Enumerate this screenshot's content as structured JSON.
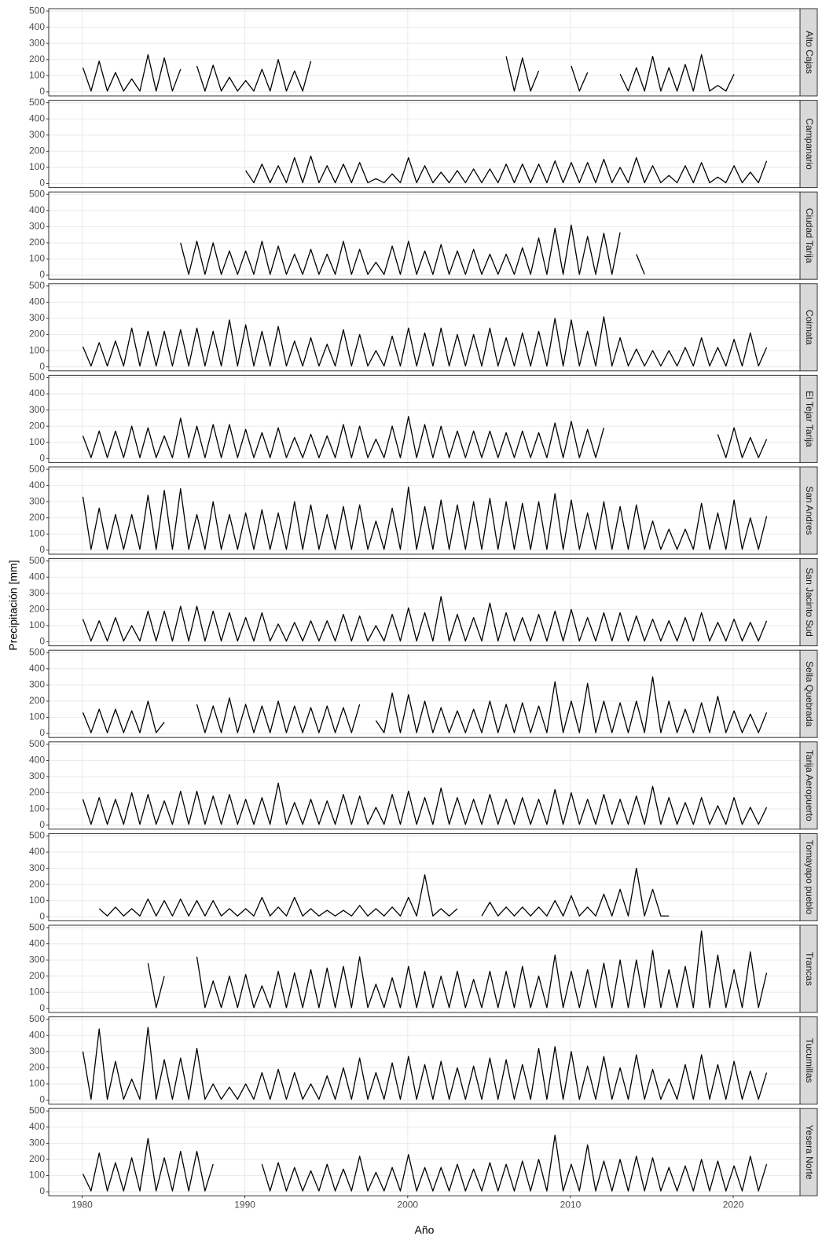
{
  "chart_data": {
    "type": "line",
    "x_label": "Año",
    "y_label": "Precipitación [mm]",
    "x": [
      1980.05,
      1980.55,
      1981.05,
      1981.55,
      1982.05,
      1982.55,
      1983.05,
      1983.55,
      1984.05,
      1984.55,
      1985.05,
      1985.55,
      1986.05,
      1986.55,
      1987.05,
      1987.55,
      1988.05,
      1988.55,
      1989.05,
      1989.55,
      1990.05,
      1990.55,
      1991.05,
      1991.55,
      1992.05,
      1992.55,
      1993.05,
      1993.55,
      1994.05,
      1994.55,
      1995.05,
      1995.55,
      1996.05,
      1996.55,
      1997.05,
      1997.55,
      1998.05,
      1998.55,
      1999.05,
      1999.55,
      2000.05,
      2000.55,
      2001.05,
      2001.55,
      2002.05,
      2002.55,
      2003.05,
      2003.55,
      2004.05,
      2004.55,
      2005.05,
      2005.55,
      2006.05,
      2006.55,
      2007.05,
      2007.55,
      2008.05,
      2008.55,
      2009.05,
      2009.55,
      2010.05,
      2010.55,
      2011.05,
      2011.55,
      2012.05,
      2012.55,
      2013.05,
      2013.55,
      2014.05,
      2014.55,
      2015.05,
      2015.55,
      2016.05,
      2016.55,
      2017.05,
      2017.55,
      2018.05,
      2018.55,
      2019.05,
      2019.55,
      2020.05,
      2020.55,
      2021.05,
      2021.55,
      2022.05
    ],
    "series": [
      {
        "name": "Alto Cajas",
        "color": "#000000",
        "values": [
          150,
          5,
          190,
          5,
          120,
          5,
          80,
          5,
          230,
          5,
          210,
          5,
          140,
          null,
          160,
          5,
          165,
          5,
          90,
          5,
          70,
          5,
          140,
          5,
          200,
          5,
          130,
          5,
          190,
          null,
          null,
          null,
          null,
          null,
          null,
          null,
          null,
          null,
          null,
          null,
          null,
          null,
          null,
          null,
          null,
          null,
          null,
          null,
          null,
          null,
          null,
          null,
          220,
          5,
          210,
          5,
          130,
          null,
          null,
          null,
          160,
          5,
          120,
          null,
          null,
          null,
          110,
          5,
          150,
          5,
          220,
          5,
          150,
          5,
          170,
          5,
          230,
          5,
          40,
          5,
          110,
          null,
          null,
          null,
          null
        ]
      },
      {
        "name": "Campanario",
        "color": "#000000",
        "values": [
          null,
          null,
          null,
          null,
          null,
          null,
          null,
          null,
          null,
          null,
          null,
          null,
          null,
          null,
          null,
          null,
          null,
          null,
          null,
          null,
          80,
          5,
          120,
          5,
          110,
          5,
          160,
          5,
          170,
          5,
          110,
          5,
          120,
          5,
          130,
          5,
          30,
          5,
          60,
          5,
          160,
          5,
          110,
          5,
          70,
          5,
          80,
          5,
          90,
          5,
          90,
          5,
          120,
          5,
          120,
          5,
          120,
          5,
          140,
          5,
          130,
          5,
          130,
          5,
          150,
          5,
          100,
          5,
          160,
          5,
          110,
          5,
          50,
          5,
          110,
          5,
          130,
          5,
          40,
          5,
          110,
          5,
          70,
          5,
          140
        ]
      },
      {
        "name": "Ciudad Tarija",
        "color": "#000000",
        "values": [
          null,
          null,
          null,
          null,
          null,
          null,
          null,
          null,
          null,
          null,
          null,
          null,
          200,
          5,
          210,
          5,
          200,
          5,
          150,
          5,
          150,
          5,
          210,
          5,
          180,
          5,
          130,
          5,
          160,
          5,
          130,
          5,
          210,
          5,
          160,
          5,
          80,
          5,
          180,
          5,
          210,
          5,
          150,
          5,
          190,
          5,
          150,
          5,
          160,
          5,
          130,
          5,
          130,
          5,
          170,
          5,
          230,
          5,
          290,
          5,
          310,
          5,
          240,
          5,
          260,
          5,
          265,
          null,
          130,
          5,
          null,
          null,
          null,
          null,
          null,
          null,
          null,
          null,
          null,
          null,
          null,
          null,
          null,
          null,
          null
        ]
      },
      {
        "name": "Coimata",
        "color": "#000000",
        "values": [
          125,
          5,
          150,
          5,
          160,
          5,
          240,
          5,
          220,
          5,
          220,
          5,
          230,
          5,
          240,
          5,
          220,
          5,
          290,
          5,
          260,
          5,
          220,
          5,
          250,
          5,
          160,
          5,
          180,
          5,
          140,
          5,
          230,
          5,
          200,
          5,
          100,
          5,
          190,
          5,
          240,
          5,
          210,
          5,
          240,
          5,
          200,
          5,
          200,
          5,
          240,
          5,
          180,
          5,
          210,
          5,
          220,
          5,
          300,
          5,
          290,
          5,
          220,
          5,
          310,
          5,
          180,
          5,
          110,
          5,
          100,
          5,
          100,
          5,
          120,
          5,
          180,
          5,
          120,
          5,
          170,
          5,
          210,
          5,
          120
        ]
      },
      {
        "name": "El Tejar Tarija",
        "color": "#000000",
        "values": [
          140,
          5,
          170,
          5,
          170,
          5,
          200,
          5,
          190,
          5,
          140,
          5,
          250,
          5,
          200,
          5,
          210,
          5,
          210,
          5,
          180,
          5,
          160,
          5,
          190,
          5,
          130,
          5,
          150,
          5,
          140,
          5,
          210,
          5,
          200,
          5,
          120,
          5,
          200,
          5,
          260,
          5,
          210,
          5,
          200,
          5,
          170,
          5,
          170,
          5,
          170,
          5,
          160,
          5,
          170,
          5,
          160,
          5,
          220,
          5,
          230,
          5,
          180,
          5,
          190,
          null,
          null,
          null,
          null,
          null,
          null,
          null,
          null,
          null,
          null,
          null,
          null,
          null,
          150,
          5,
          190,
          5,
          130,
          5,
          120
        ]
      },
      {
        "name": "San Andres",
        "color": "#000000",
        "values": [
          330,
          5,
          260,
          5,
          220,
          5,
          220,
          5,
          340,
          5,
          370,
          5,
          380,
          5,
          220,
          5,
          300,
          5,
          220,
          5,
          230,
          5,
          250,
          5,
          230,
          5,
          300,
          5,
          280,
          5,
          220,
          5,
          270,
          5,
          280,
          5,
          180,
          5,
          260,
          5,
          390,
          5,
          270,
          5,
          310,
          5,
          280,
          5,
          300,
          5,
          320,
          5,
          300,
          5,
          290,
          5,
          300,
          5,
          350,
          5,
          310,
          5,
          230,
          5,
          300,
          5,
          270,
          5,
          280,
          5,
          180,
          5,
          130,
          5,
          130,
          5,
          290,
          5,
          230,
          5,
          310,
          5,
          200,
          5,
          210
        ]
      },
      {
        "name": "San Jacinto Sud",
        "color": "#000000",
        "values": [
          140,
          5,
          130,
          5,
          150,
          5,
          100,
          5,
          190,
          5,
          190,
          5,
          220,
          5,
          220,
          5,
          190,
          5,
          180,
          5,
          150,
          5,
          180,
          5,
          110,
          5,
          120,
          5,
          130,
          5,
          130,
          5,
          170,
          5,
          160,
          5,
          100,
          5,
          170,
          5,
          210,
          5,
          180,
          5,
          280,
          5,
          170,
          5,
          150,
          5,
          240,
          5,
          180,
          5,
          150,
          5,
          170,
          5,
          190,
          5,
          200,
          5,
          150,
          5,
          180,
          5,
          180,
          5,
          160,
          5,
          140,
          5,
          130,
          5,
          150,
          5,
          180,
          5,
          120,
          5,
          140,
          5,
          120,
          5,
          130
        ]
      },
      {
        "name": "Sella Quebrada",
        "color": "#000000",
        "values": [
          130,
          5,
          150,
          5,
          150,
          5,
          140,
          5,
          200,
          5,
          70,
          null,
          null,
          null,
          180,
          5,
          170,
          5,
          220,
          5,
          180,
          5,
          170,
          5,
          200,
          5,
          170,
          5,
          160,
          5,
          170,
          5,
          160,
          5,
          180,
          null,
          80,
          5,
          250,
          5,
          240,
          5,
          200,
          5,
          160,
          5,
          140,
          5,
          150,
          5,
          200,
          5,
          180,
          5,
          190,
          5,
          170,
          5,
          320,
          5,
          200,
          5,
          310,
          5,
          200,
          5,
          190,
          5,
          200,
          5,
          350,
          5,
          200,
          5,
          150,
          5,
          190,
          5,
          230,
          5,
          140,
          5,
          120,
          5,
          130
        ]
      },
      {
        "name": "Tarija Aeropuerto",
        "color": "#000000",
        "values": [
          160,
          5,
          170,
          5,
          160,
          5,
          200,
          5,
          190,
          5,
          150,
          5,
          210,
          5,
          210,
          5,
          180,
          5,
          190,
          5,
          160,
          5,
          170,
          5,
          260,
          5,
          140,
          5,
          160,
          5,
          150,
          5,
          190,
          5,
          180,
          5,
          110,
          5,
          190,
          5,
          210,
          5,
          170,
          5,
          230,
          5,
          170,
          5,
          160,
          5,
          190,
          5,
          160,
          5,
          170,
          5,
          160,
          5,
          220,
          5,
          200,
          5,
          160,
          5,
          190,
          5,
          160,
          5,
          180,
          5,
          240,
          5,
          170,
          5,
          140,
          5,
          170,
          5,
          120,
          5,
          170,
          5,
          110,
          5,
          110
        ]
      },
      {
        "name": "Tomayapo pueblo",
        "color": "#000000",
        "values": [
          null,
          null,
          50,
          5,
          60,
          5,
          50,
          5,
          110,
          5,
          100,
          5,
          110,
          5,
          100,
          5,
          100,
          5,
          50,
          5,
          50,
          5,
          120,
          5,
          60,
          5,
          120,
          5,
          50,
          5,
          40,
          5,
          40,
          5,
          70,
          5,
          50,
          5,
          60,
          5,
          120,
          5,
          260,
          5,
          50,
          5,
          50,
          null,
          null,
          5,
          90,
          5,
          60,
          5,
          60,
          5,
          60,
          5,
          100,
          5,
          130,
          5,
          60,
          5,
          140,
          5,
          170,
          5,
          300,
          5,
          170,
          5,
          5,
          null,
          null,
          null,
          null,
          null,
          null,
          null,
          null,
          null,
          null,
          null,
          null
        ]
      },
      {
        "name": "Trancas",
        "color": "#000000",
        "values": [
          null,
          null,
          null,
          null,
          null,
          null,
          null,
          null,
          280,
          5,
          200,
          null,
          null,
          null,
          320,
          5,
          170,
          5,
          200,
          5,
          210,
          5,
          140,
          5,
          230,
          5,
          220,
          5,
          240,
          5,
          250,
          5,
          260,
          5,
          320,
          5,
          150,
          5,
          190,
          5,
          260,
          5,
          230,
          5,
          200,
          5,
          230,
          5,
          180,
          5,
          230,
          5,
          230,
          5,
          260,
          5,
          200,
          5,
          330,
          5,
          230,
          5,
          240,
          5,
          280,
          5,
          300,
          5,
          300,
          5,
          360,
          5,
          240,
          5,
          260,
          5,
          480,
          5,
          330,
          5,
          240,
          5,
          350,
          5,
          220
        ]
      },
      {
        "name": "Tucumillas",
        "color": "#000000",
        "values": [
          300,
          5,
          440,
          5,
          240,
          5,
          130,
          5,
          450,
          5,
          250,
          5,
          260,
          5,
          320,
          5,
          100,
          5,
          80,
          5,
          100,
          5,
          170,
          5,
          190,
          5,
          170,
          5,
          100,
          5,
          150,
          5,
          200,
          5,
          260,
          5,
          170,
          5,
          230,
          5,
          270,
          5,
          220,
          5,
          240,
          5,
          200,
          5,
          210,
          5,
          260,
          5,
          250,
          5,
          220,
          5,
          320,
          5,
          330,
          5,
          300,
          5,
          210,
          5,
          270,
          5,
          200,
          5,
          280,
          5,
          190,
          5,
          130,
          5,
          220,
          5,
          280,
          5,
          220,
          5,
          240,
          5,
          180,
          5,
          170
        ]
      },
      {
        "name": "Yesera Norte",
        "color": "#000000",
        "values": [
          110,
          5,
          240,
          5,
          180,
          5,
          210,
          5,
          330,
          5,
          210,
          5,
          250,
          5,
          250,
          5,
          170,
          null,
          null,
          null,
          null,
          null,
          170,
          5,
          180,
          5,
          150,
          5,
          130,
          5,
          170,
          5,
          140,
          5,
          220,
          5,
          120,
          5,
          150,
          5,
          230,
          5,
          150,
          5,
          150,
          5,
          170,
          5,
          140,
          5,
          180,
          5,
          170,
          5,
          190,
          5,
          200,
          5,
          350,
          5,
          170,
          5,
          290,
          5,
          190,
          5,
          200,
          5,
          220,
          5,
          210,
          5,
          150,
          5,
          160,
          5,
          200,
          5,
          190,
          5,
          160,
          5,
          220,
          5,
          170
        ]
      }
    ],
    "xlim": [
      1977.95,
      2024.1
    ],
    "ylim": [
      -25,
      515
    ],
    "xticks": [
      1980,
      1990,
      2000,
      2010,
      2020
    ],
    "yticks": [
      0,
      100,
      200,
      300,
      400,
      500
    ],
    "grid": true
  }
}
